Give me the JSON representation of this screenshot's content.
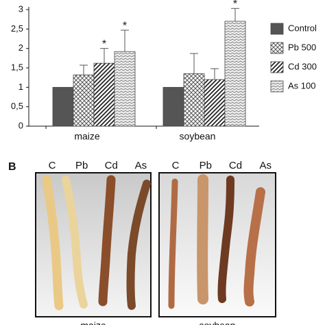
{
  "chart_data": {
    "type": "bar",
    "categories": [
      "maize",
      "soybean"
    ],
    "series": [
      {
        "name": "Control",
        "color": "#555555",
        "pattern": "solid",
        "values": [
          1,
          1
        ],
        "errors": [
          0,
          0
        ]
      },
      {
        "name": "Pb 500",
        "color": "#555555",
        "pattern": "crosshatch",
        "values": [
          1.32,
          1.35
        ],
        "errors": [
          0.25,
          0.52
        ]
      },
      {
        "name": "Cd 300",
        "color": "#222222",
        "pattern": "diagonal",
        "values": [
          1.62,
          1.2
        ],
        "errors": [
          0.38,
          0.28
        ]
      },
      {
        "name": "As 100",
        "color": "#777777",
        "pattern": "zigzag",
        "values": [
          1.92,
          2.7
        ],
        "errors": [
          0.55,
          0.33
        ]
      }
    ],
    "annotations": [
      {
        "text": "*",
        "series": "Cd 300",
        "category": "maize"
      },
      {
        "text": "*",
        "series": "As 100",
        "category": "maize"
      },
      {
        "text": "*",
        "series": "As 100",
        "category": "soybean"
      }
    ],
    "ylim": [
      0,
      3
    ],
    "yticks": [
      0,
      {
        "value": 0.5,
        "label": "0,5"
      },
      1,
      {
        "value": 1.5,
        "label": "1,5"
      },
      2,
      {
        "value": 2.5,
        "label": "2,5"
      },
      3
    ],
    "legend": "right"
  },
  "panel_b": {
    "label": "B",
    "photos": [
      {
        "labels": [
          "C",
          "Pb",
          "Cd",
          "As"
        ],
        "caption": "maize"
      },
      {
        "labels": [
          "C",
          "Pb",
          "Cd",
          "As"
        ],
        "caption": "soybean"
      }
    ]
  }
}
